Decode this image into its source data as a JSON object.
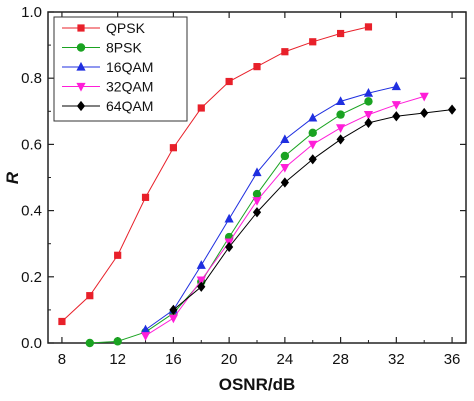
{
  "chart_data": {
    "type": "line",
    "xlabel": "OSNR/dB",
    "ylabel": "R",
    "xlim": [
      7,
      37
    ],
    "ylim": [
      0,
      1.0
    ],
    "x_ticks": [
      "8",
      "12",
      "16",
      "20",
      "24",
      "28",
      "32",
      "36"
    ],
    "y_ticks": [
      "0.0",
      "0.2",
      "0.4",
      "0.6",
      "0.8",
      "1.0"
    ],
    "grid": false,
    "legend_position": "top-left",
    "series": [
      {
        "name": "QPSK",
        "color": "#e8202a",
        "marker": "square",
        "x": [
          8,
          10,
          12,
          14,
          16,
          18,
          20,
          22,
          24,
          26,
          28,
          30
        ],
        "y": [
          0.065,
          0.143,
          0.265,
          0.44,
          0.59,
          0.71,
          0.79,
          0.835,
          0.88,
          0.91,
          0.935,
          0.955
        ]
      },
      {
        "name": "8PSK",
        "color": "#1aa321",
        "marker": "circle",
        "x": [
          10,
          12,
          14,
          16,
          18,
          20,
          22,
          24,
          26,
          28,
          30
        ],
        "y": [
          0.0,
          0.005,
          0.033,
          0.09,
          0.185,
          0.32,
          0.45,
          0.565,
          0.635,
          0.69,
          0.73
        ]
      },
      {
        "name": "16QAM",
        "color": "#1f2fe0",
        "marker": "triangle-up",
        "x": [
          14,
          16,
          18,
          20,
          22,
          24,
          26,
          28,
          30,
          32
        ],
        "y": [
          0.04,
          0.1,
          0.235,
          0.375,
          0.515,
          0.615,
          0.68,
          0.73,
          0.755,
          0.775
        ]
      },
      {
        "name": "32QAM",
        "color": "#ff1ed8",
        "marker": "triangle-down",
        "x": [
          14,
          16,
          18,
          20,
          22,
          24,
          26,
          28,
          30,
          32,
          34
        ],
        "y": [
          0.022,
          0.075,
          0.19,
          0.305,
          0.43,
          0.53,
          0.6,
          0.65,
          0.69,
          0.72,
          0.745
        ]
      },
      {
        "name": "64QAM",
        "color": "#000000",
        "marker": "diamond",
        "x": [
          16,
          18,
          20,
          22,
          24,
          26,
          28,
          30,
          32,
          34,
          36
        ],
        "y": [
          0.1,
          0.17,
          0.29,
          0.395,
          0.485,
          0.555,
          0.615,
          0.665,
          0.685,
          0.695,
          0.705
        ]
      }
    ]
  }
}
